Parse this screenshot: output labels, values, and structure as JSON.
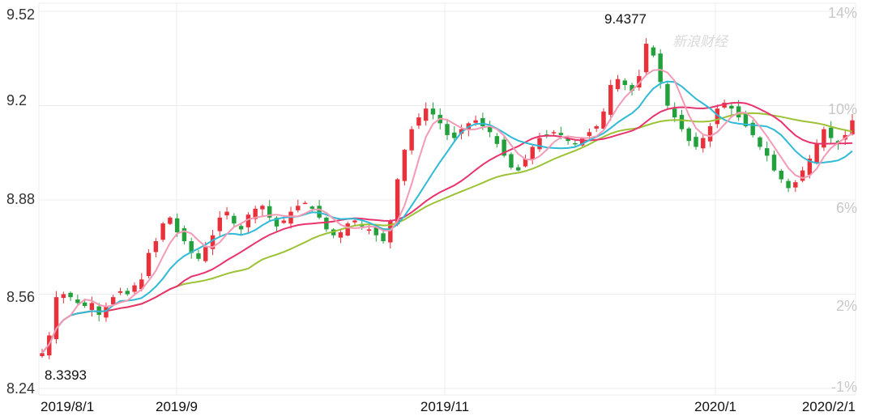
{
  "chart_data": {
    "type": "candlestick",
    "y_left_ticks": [
      "9.52",
      "9.2",
      "8.88",
      "8.56",
      "8.24"
    ],
    "y_left_values": [
      9.52,
      9.2,
      8.88,
      8.56,
      8.24
    ],
    "y_right_ticks": [
      "14%",
      "10%",
      "6%",
      "2%",
      "-1%"
    ],
    "ylim": [
      8.24,
      9.52
    ],
    "x_ticks": [
      "2019/8/1",
      "2019/9",
      "2019/11",
      "2020/1",
      "2020/2/1"
    ],
    "annotations": {
      "max_label": "9.4377",
      "min_label": "8.3393"
    },
    "watermark": "新浪财经",
    "colors": {
      "up": "#e8313a",
      "down": "#22a03b",
      "ma5": "#f39ab5",
      "ma10": "#2fbad6",
      "ma20": "#e8336d",
      "ma30": "#9cc236",
      "grid": "#ececec"
    },
    "closes": [
      8.36,
      8.42,
      8.55,
      8.56,
      8.55,
      8.53,
      8.52,
      8.53,
      8.49,
      8.52,
      8.55,
      8.57,
      8.56,
      8.59,
      8.61,
      8.7,
      8.74,
      8.8,
      8.82,
      8.77,
      8.74,
      8.7,
      8.68,
      8.72,
      8.76,
      8.82,
      8.84,
      8.8,
      8.78,
      8.83,
      8.85,
      8.86,
      8.82,
      8.79,
      8.81,
      8.84,
      8.86,
      8.87,
      8.85,
      8.82,
      8.78,
      8.76,
      8.77,
      8.8,
      8.81,
      8.79,
      8.78,
      8.76,
      8.74,
      8.81,
      8.95,
      9.05,
      9.12,
      9.16,
      9.19,
      9.17,
      9.14,
      9.1,
      9.09,
      9.12,
      9.14,
      9.15,
      9.13,
      9.11,
      9.07,
      9.03,
      8.99,
      8.98,
      9.02,
      9.06,
      9.09,
      9.1,
      9.11,
      9.1,
      9.08,
      9.07,
      9.09,
      9.11,
      9.13,
      9.18,
      9.27,
      9.29,
      9.27,
      9.25,
      9.3,
      9.41,
      9.37,
      9.28,
      9.2,
      9.16,
      9.12,
      9.08,
      9.06,
      9.09,
      9.13,
      9.19,
      9.21,
      9.19,
      9.16,
      9.13,
      9.1,
      9.06,
      9.03,
      8.98,
      8.95,
      8.92,
      8.94,
      8.98,
      9.02,
      9.07,
      9.12,
      9.09,
      9.07,
      9.1,
      9.15
    ],
    "series_names": {}
  }
}
